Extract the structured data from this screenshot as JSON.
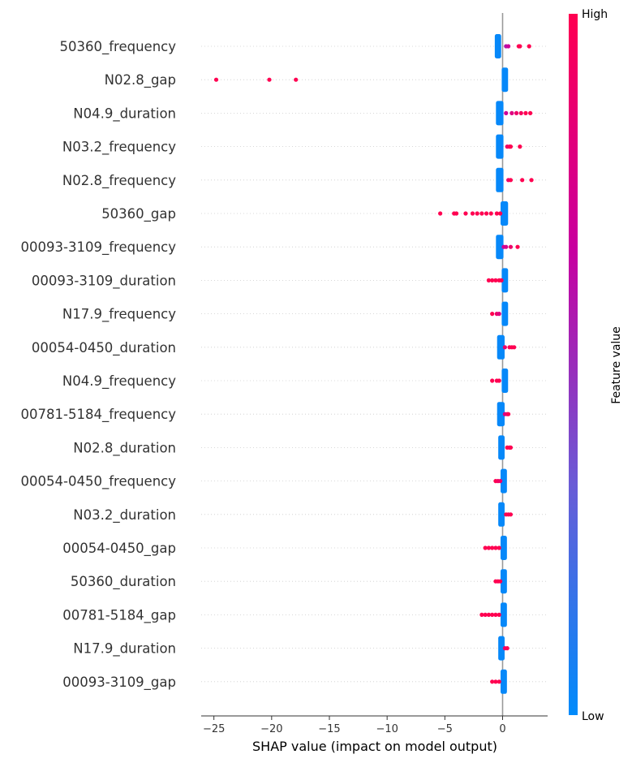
{
  "chart_data": {
    "type": "scatter",
    "subtype": "shap-beeswarm-summary",
    "title": "",
    "xlabel": "SHAP value (impact on model output)",
    "xticks": [
      -25,
      -20,
      -15,
      -10,
      -5,
      0
    ],
    "xlim": [
      -26.1,
      3.9
    ],
    "zero_line": true,
    "grid": "dotted horizontal row guides",
    "colorbar": {
      "label": "Feature value",
      "high_label": "High",
      "low_label": "Low",
      "colors": [
        "#008bfb",
        "#6a5bd6",
        "#c700a0",
        "#ff0051"
      ],
      "placement": "right"
    },
    "features": [
      {
        "name": "50360_frequency",
        "bulk_low": [
          -0.5,
          -0.3
        ],
        "points": [
          [
            0.3,
            0.6
          ],
          [
            0.5,
            0.7
          ],
          [
            1.5,
            1.0
          ],
          [
            1.4,
            1.0
          ],
          [
            2.3,
            1.0
          ]
        ]
      },
      {
        "name": "N02.8_gap",
        "bulk_low": [
          0.1,
          0.3
        ],
        "points": [
          [
            -24.8,
            1.0
          ],
          [
            -20.2,
            1.0
          ],
          [
            -17.9,
            1.0
          ]
        ]
      },
      {
        "name": "N04.9_duration",
        "bulk_low": [
          -0.4,
          -0.1
        ],
        "points": [
          [
            0.3,
            0.7
          ],
          [
            0.8,
            0.8
          ],
          [
            1.2,
            0.9
          ],
          [
            1.6,
            0.95
          ],
          [
            2.0,
            1.0
          ],
          [
            2.4,
            1.0
          ]
        ]
      },
      {
        "name": "N03.2_frequency",
        "bulk_low": [
          -0.4,
          -0.1
        ],
        "points": [
          [
            0.4,
            0.9
          ],
          [
            0.6,
            1.0
          ],
          [
            0.7,
            1.0
          ],
          [
            1.5,
            1.0
          ]
        ]
      },
      {
        "name": "N02.8_frequency",
        "bulk_low": [
          -0.4,
          -0.1
        ],
        "points": [
          [
            0.5,
            0.9
          ],
          [
            0.7,
            1.0
          ],
          [
            1.7,
            1.0
          ],
          [
            2.5,
            1.0
          ]
        ]
      },
      {
        "name": "50360_gap",
        "bulk_low": [
          0.0,
          0.3
        ],
        "points": [
          [
            -5.4,
            1.0
          ],
          [
            -4.2,
            1.0
          ],
          [
            -4.0,
            1.0
          ],
          [
            -3.2,
            1.0
          ],
          [
            -2.6,
            1.0
          ],
          [
            -2.2,
            1.0
          ],
          [
            -1.8,
            1.0
          ],
          [
            -1.4,
            1.0
          ],
          [
            -1.0,
            1.0
          ],
          [
            -0.5,
            1.0
          ],
          [
            -0.2,
            1.0
          ]
        ]
      },
      {
        "name": "00093-3109_frequency",
        "bulk_low": [
          -0.4,
          -0.1
        ],
        "points": [
          [
            0.1,
            0.7
          ],
          [
            0.3,
            0.75
          ],
          [
            0.7,
            0.9
          ],
          [
            1.3,
            1.0
          ]
        ]
      },
      {
        "name": "00093-3109_duration",
        "bulk_low": [
          0.1,
          0.3
        ],
        "points": [
          [
            -1.2,
            1.0
          ],
          [
            -0.9,
            1.0
          ],
          [
            -0.6,
            1.0
          ],
          [
            -0.3,
            1.0
          ],
          [
            -0.1,
            1.0
          ]
        ]
      },
      {
        "name": "N17.9_frequency",
        "bulk_low": [
          0.1,
          0.3
        ],
        "points": [
          [
            -0.9,
            1.0
          ],
          [
            -0.5,
            0.9
          ],
          [
            -0.3,
            0.8
          ]
        ]
      },
      {
        "name": "00054-0450_duration",
        "bulk_low": [
          -0.3,
          0.0
        ],
        "points": [
          [
            0.2,
            0.9
          ],
          [
            0.6,
            1.0
          ],
          [
            0.8,
            1.0
          ],
          [
            1.0,
            1.0
          ]
        ]
      },
      {
        "name": "N04.9_frequency",
        "bulk_low": [
          0.1,
          0.3
        ],
        "points": [
          [
            -0.9,
            1.0
          ],
          [
            -0.5,
            1.0
          ],
          [
            -0.3,
            1.0
          ]
        ]
      },
      {
        "name": "00781-5184_frequency",
        "bulk_low": [
          -0.3,
          0.0
        ],
        "points": [
          [
            0.2,
            0.8
          ],
          [
            0.4,
            0.85
          ],
          [
            0.5,
            1.0
          ]
        ]
      },
      {
        "name": "N02.8_duration",
        "bulk_low": [
          -0.2,
          0.0
        ],
        "points": [
          [
            0.4,
            1.0
          ],
          [
            0.6,
            1.0
          ],
          [
            0.7,
            1.0
          ]
        ]
      },
      {
        "name": "00054-0450_frequency",
        "bulk_low": [
          0.0,
          0.2
        ],
        "points": [
          [
            -0.6,
            1.0
          ],
          [
            -0.4,
            0.95
          ],
          [
            -0.2,
            0.9
          ]
        ]
      },
      {
        "name": "N03.2_duration",
        "bulk_low": [
          -0.2,
          0.0
        ],
        "points": [
          [
            0.3,
            1.0
          ],
          [
            0.5,
            1.0
          ],
          [
            0.7,
            1.0
          ]
        ]
      },
      {
        "name": "00054-0450_gap",
        "bulk_low": [
          0.0,
          0.2
        ],
        "points": [
          [
            -1.5,
            1.0
          ],
          [
            -1.2,
            1.0
          ],
          [
            -0.9,
            1.0
          ],
          [
            -0.6,
            1.0
          ],
          [
            -0.3,
            1.0
          ]
        ]
      },
      {
        "name": "50360_duration",
        "bulk_low": [
          0.0,
          0.2
        ],
        "points": [
          [
            -0.6,
            1.0
          ],
          [
            -0.4,
            1.0
          ],
          [
            -0.2,
            1.0
          ]
        ]
      },
      {
        "name": "00781-5184_gap",
        "bulk_low": [
          0.0,
          0.2
        ],
        "points": [
          [
            -1.8,
            1.0
          ],
          [
            -1.5,
            1.0
          ],
          [
            -1.2,
            1.0
          ],
          [
            -0.9,
            1.0
          ],
          [
            -0.6,
            1.0
          ],
          [
            -0.3,
            1.0
          ]
        ]
      },
      {
        "name": "N17.9_duration",
        "bulk_low": [
          -0.2,
          0.0
        ],
        "points": [
          [
            0.2,
            0.9
          ],
          [
            0.4,
            1.0
          ]
        ]
      },
      {
        "name": "00093-3109_gap",
        "bulk_low": [
          0.0,
          0.2
        ],
        "points": [
          [
            -0.9,
            1.0
          ],
          [
            -0.6,
            1.0
          ],
          [
            -0.3,
            1.0
          ]
        ]
      }
    ]
  }
}
